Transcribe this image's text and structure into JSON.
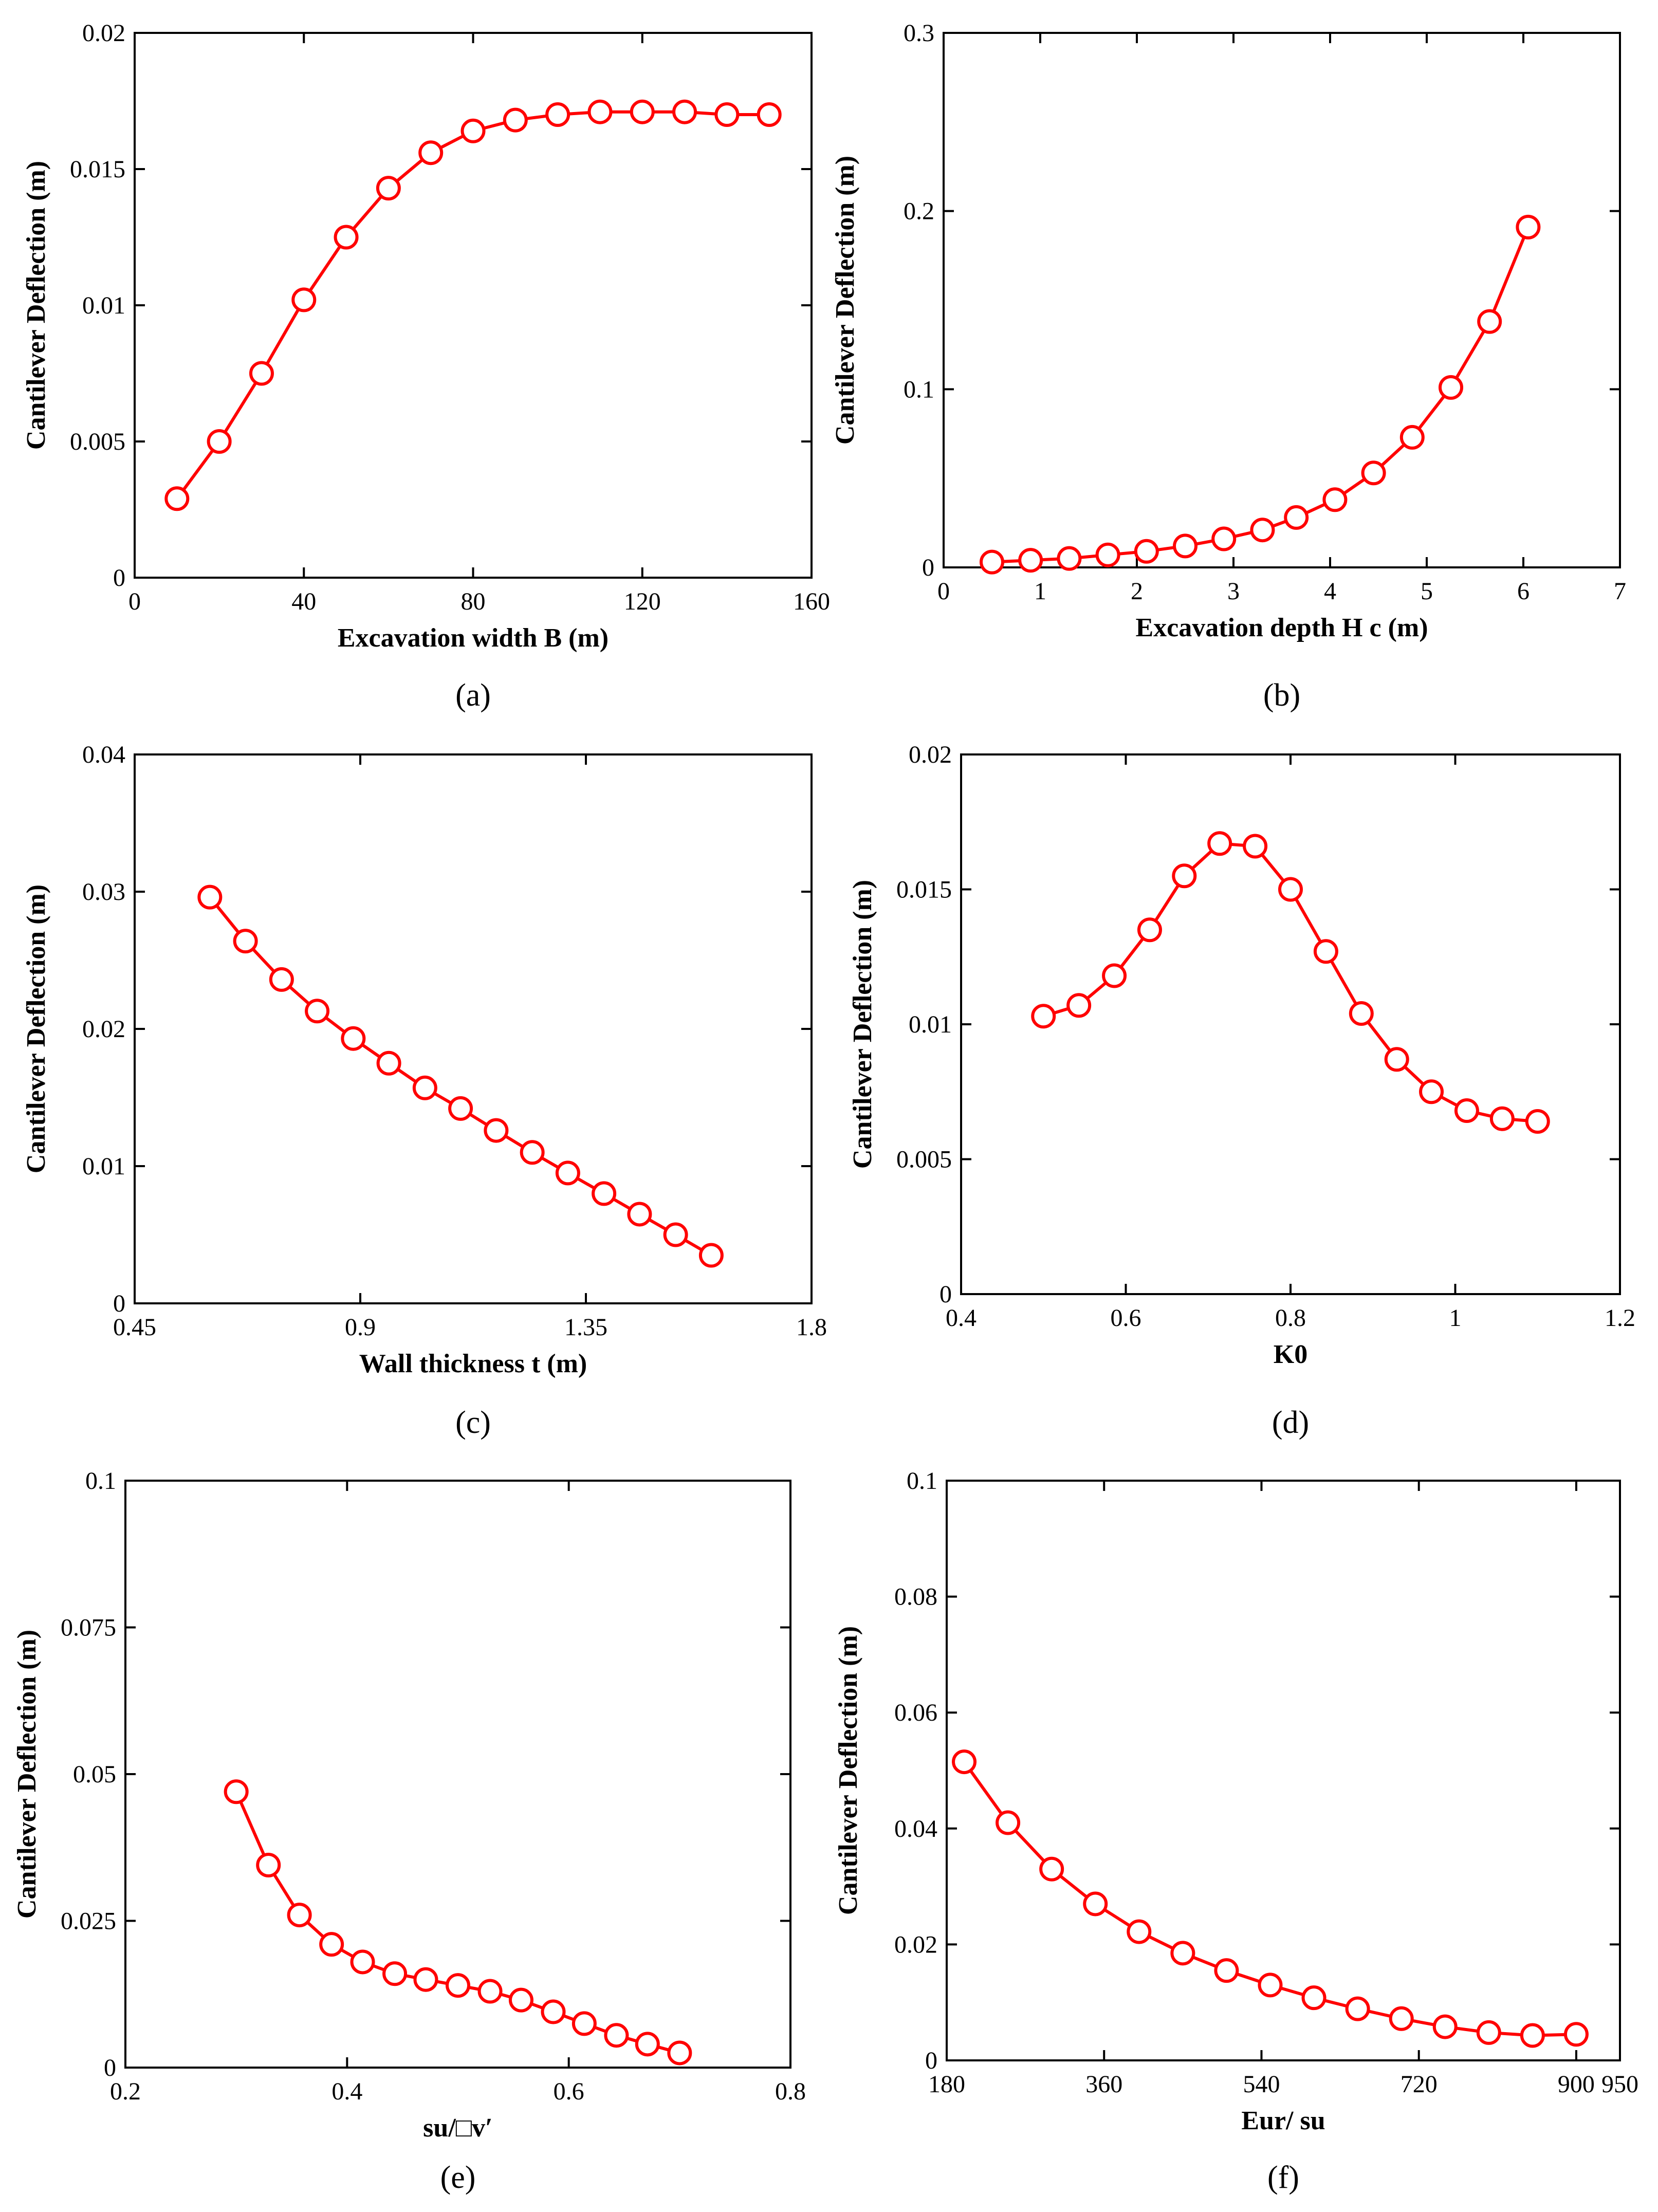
{
  "figure": {
    "chart_data": [
      {
        "type": "line",
        "panel_label": "(a)",
        "title": "",
        "xlabel": "Excavation width B (m)",
        "ylabel": "Cantilever Deflection (m)",
        "xlim": [
          0,
          160
        ],
        "ylim": [
          0,
          0.02
        ],
        "xticks": [
          0,
          40,
          80,
          120,
          160
        ],
        "xtick_labels": [
          "0",
          "40",
          "80",
          "120",
          "160"
        ],
        "yticks": [
          0,
          0.005,
          0.01,
          0.015,
          0.02
        ],
        "ytick_labels": [
          "0",
          "0.005",
          "0.01",
          "0.015",
          "0.02"
        ],
        "series": [
          {
            "name": "Cantilever deflection",
            "x": [
              10,
              20,
              30,
              40,
              50,
              60,
              70,
              80,
              90,
              100,
              110,
              120,
              130,
              140,
              150
            ],
            "y": [
              0.0029,
              0.005,
              0.0075,
              0.0102,
              0.0125,
              0.0143,
              0.0156,
              0.0164,
              0.0168,
              0.017,
              0.0171,
              0.0171,
              0.0171,
              0.017,
              0.017
            ]
          }
        ]
      },
      {
        "type": "line",
        "panel_label": "(b)",
        "title": "",
        "xlabel": "Excavation depth H c (m)",
        "ylabel": "Cantilever Deflection (m)",
        "xlim": [
          0,
          7
        ],
        "ylim": [
          0,
          0.3
        ],
        "xticks": [
          0,
          1,
          2,
          3,
          4,
          5,
          6,
          7
        ],
        "xtick_labels": [
          "0",
          "1",
          "2",
          "3",
          "4",
          "5",
          "6",
          "7"
        ],
        "yticks": [
          0,
          0.1,
          0.2,
          0.3
        ],
        "ytick_labels": [
          "0",
          "0.1",
          "0.2",
          "0.3"
        ],
        "series": [
          {
            "name": "Cantilever deflection",
            "x": [
              0.5,
              0.9,
              1.3,
              1.7,
              2.1,
              2.5,
              2.9,
              3.3,
              3.65,
              4.05,
              4.45,
              4.85,
              5.25,
              5.65,
              6.05
            ],
            "y": [
              0.003,
              0.004,
              0.005,
              0.007,
              0.009,
              0.012,
              0.016,
              0.021,
              0.028,
              0.038,
              0.053,
              0.073,
              0.101,
              0.138,
              0.191
            ]
          }
        ]
      },
      {
        "type": "line",
        "panel_label": "(c)",
        "title": "",
        "xlabel": "Wall thickness t (m)",
        "ylabel": "Cantilever Deflection (m)",
        "xlim": [
          0.45,
          1.8
        ],
        "ylim": [
          0,
          0.04
        ],
        "xticks": [
          0.45,
          0.9,
          1.35,
          1.8
        ],
        "xtick_labels": [
          "0.45",
          "0.9",
          "1.35",
          "1.8"
        ],
        "yticks": [
          0,
          0.01,
          0.02,
          0.03,
          0.04
        ],
        "ytick_labels": [
          "0",
          "0.01",
          "0.02",
          "0.03",
          "0.04"
        ],
        "series": [
          {
            "name": "Cantilever deflection",
            "x": [
              0.6,
              0.671,
              0.743,
              0.814,
              0.886,
              0.957,
              1.029,
              1.1,
              1.171,
              1.243,
              1.314,
              1.386,
              1.457,
              1.529,
              1.6
            ],
            "y": [
              0.0296,
              0.0264,
              0.0236,
              0.0213,
              0.0193,
              0.0175,
              0.0157,
              0.0142,
              0.0126,
              0.011,
              0.0095,
              0.008,
              0.0065,
              0.005,
              0.0035
            ]
          }
        ]
      },
      {
        "type": "line",
        "panel_label": "(d)",
        "title": "",
        "xlabel": "K0",
        "ylabel": "Cantilever Deflection (m)",
        "xlim": [
          0.4,
          1.2
        ],
        "ylim": [
          0,
          0.02
        ],
        "xticks": [
          0.4,
          0.6,
          0.8,
          1,
          1.2
        ],
        "xtick_labels": [
          "0.4",
          "0.6",
          "0.8",
          "1",
          "1.2"
        ],
        "yticks": [
          0,
          0.005,
          0.01,
          0.015,
          0.02
        ],
        "ytick_labels": [
          "0",
          "0.005",
          "0.01",
          "0.015",
          "0.02"
        ],
        "series": [
          {
            "name": "Cantilever deflection",
            "x": [
              0.5,
              0.543,
              0.586,
              0.629,
              0.671,
              0.714,
              0.757,
              0.8,
              0.843,
              0.886,
              0.929,
              0.971,
              1.014,
              1.057,
              1.1
            ],
            "y": [
              0.0103,
              0.0107,
              0.0118,
              0.0135,
              0.0155,
              0.0167,
              0.0166,
              0.015,
              0.0127,
              0.0104,
              0.0087,
              0.0075,
              0.0068,
              0.0065,
              0.0064
            ]
          }
        ]
      },
      {
        "type": "line",
        "panel_label": "(e)",
        "title": "",
        "xlabel": "su/□v′",
        "ylabel": "Cantilever Deflection (m)",
        "xlim": [
          0.2,
          0.8
        ],
        "ylim": [
          0,
          0.1
        ],
        "xticks": [
          0.2,
          0.4,
          0.6,
          0.8
        ],
        "xtick_labels": [
          "0.2",
          "0.4",
          "0.6",
          "0.8"
        ],
        "yticks": [
          0,
          0.025,
          0.05,
          0.075,
          0.1
        ],
        "ytick_labels": [
          "0",
          "0.025",
          "0.05",
          "0.075",
          "0.1"
        ],
        "series": [
          {
            "name": "Cantilever deflection",
            "x": [
              0.3,
              0.329,
              0.357,
              0.386,
              0.414,
              0.443,
              0.471,
              0.5,
              0.529,
              0.557,
              0.586,
              0.614,
              0.643,
              0.671,
              0.7
            ],
            "y": [
              0.047,
              0.0345,
              0.026,
              0.021,
              0.018,
              0.016,
              0.015,
              0.014,
              0.013,
              0.0115,
              0.0095,
              0.0075,
              0.0055,
              0.004,
              0.0025
            ]
          }
        ]
      },
      {
        "type": "line",
        "panel_label": "(f)",
        "title": "",
        "xlabel": "Eur/ su",
        "ylabel": "Cantilever Deflection (m)",
        "xlim": [
          180,
          950
        ],
        "ylim": [
          0,
          0.1
        ],
        "xticks": [
          180,
          360,
          540,
          720,
          900,
          950
        ],
        "xtick_labels": [
          "180",
          "360",
          "540",
          "720",
          "900",
          "950"
        ],
        "yticks": [
          0,
          0.02,
          0.04,
          0.06,
          0.08,
          0.1
        ],
        "ytick_labels": [
          "0",
          "0.02",
          "0.04",
          "0.06",
          "0.08",
          "0.1"
        ],
        "series": [
          {
            "name": "Cantilever deflection",
            "x": [
              200,
              250,
              300,
              350,
              400,
              450,
              500,
              550,
              600,
              650,
              700,
              750,
              800,
              850,
              900
            ],
            "y": [
              0.0515,
              0.041,
              0.033,
              0.027,
              0.0222,
              0.0185,
              0.0155,
              0.013,
              0.0108,
              0.0089,
              0.0072,
              0.0058,
              0.0048,
              0.0043,
              0.0045
            ]
          }
        ]
      }
    ]
  }
}
